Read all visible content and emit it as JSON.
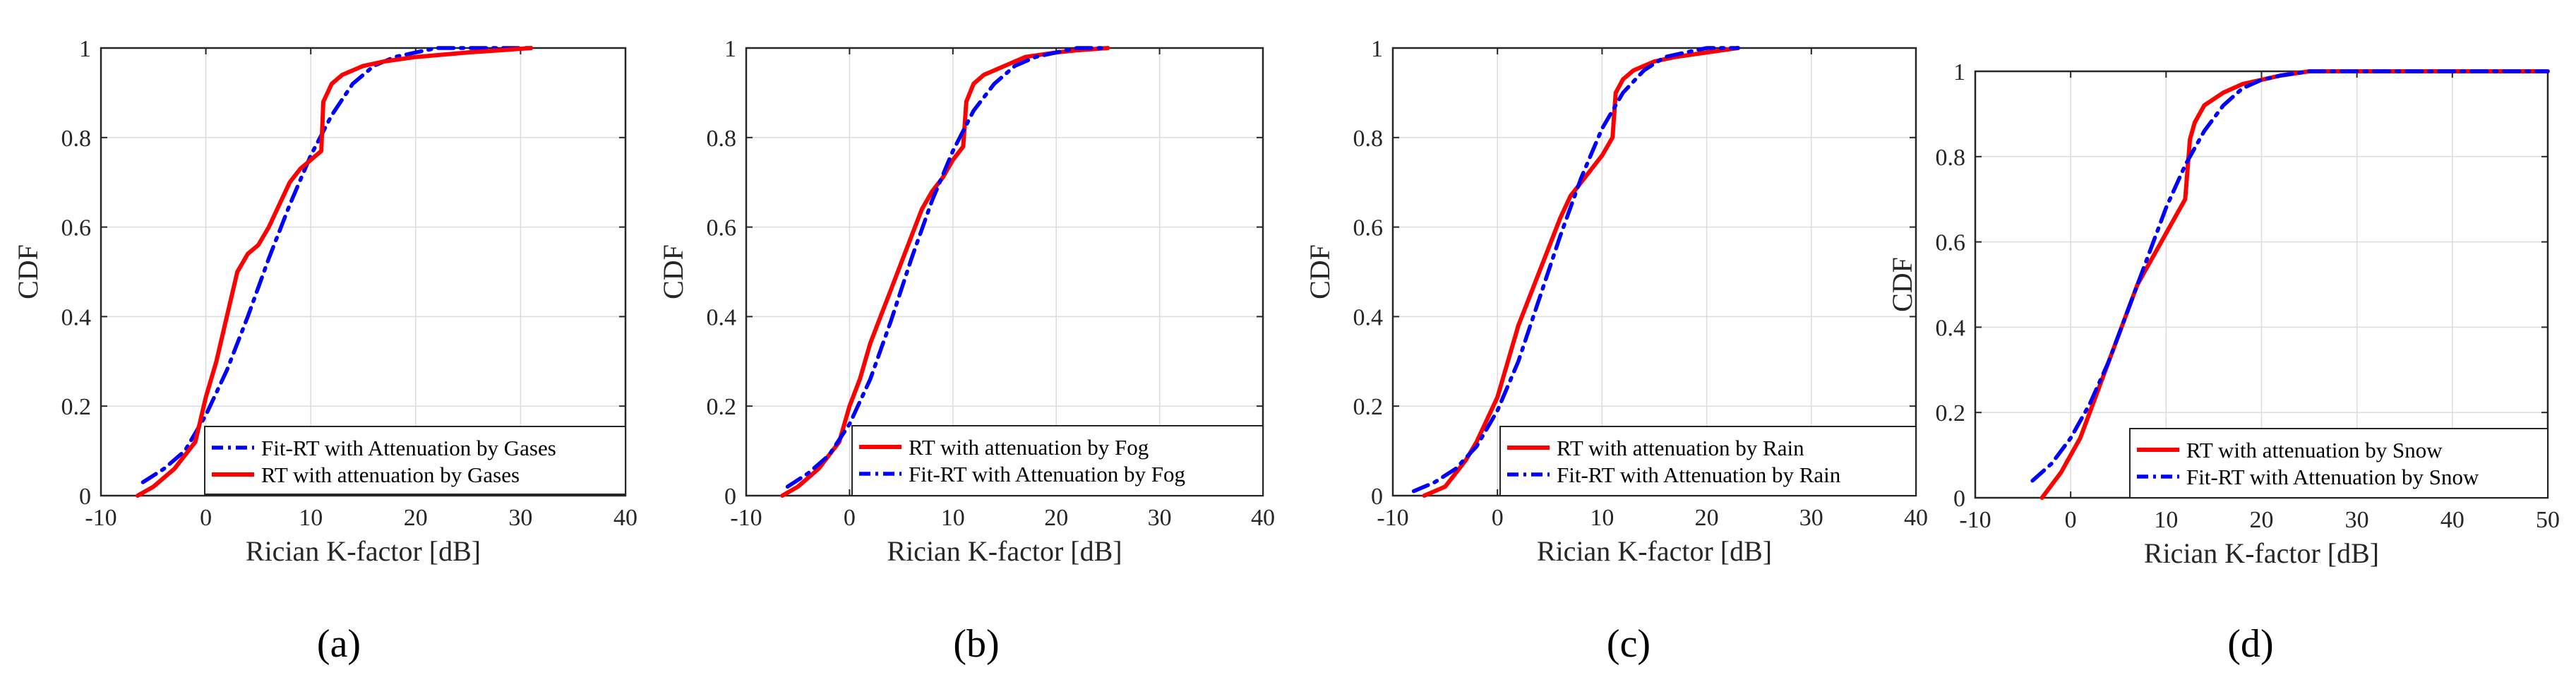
{
  "chart_data": [
    {
      "type": "line",
      "panel_label": "(a)",
      "xlabel": "Rician K-factor [dB]",
      "ylabel": "CDF",
      "xlim": [
        -10,
        40
      ],
      "ylim": [
        0,
        1
      ],
      "xticks": [
        "-10",
        "0",
        "10",
        "20",
        "30",
        "40"
      ],
      "yticks": [
        "0",
        "0.2",
        "0.4",
        "0.6",
        "0.8",
        "1"
      ],
      "grid": true,
      "legend_position": "bottom-right",
      "series": [
        {
          "name": "Fit-RT with Attenuation by Gases",
          "color": "#0000ff",
          "style": "dashdot",
          "x": [
            -6,
            -4,
            -2,
            0,
            2,
            4,
            6,
            8,
            10,
            12,
            14,
            16,
            18,
            20,
            22,
            25,
            28,
            31
          ],
          "y": [
            0.03,
            0.06,
            0.1,
            0.18,
            0.28,
            0.4,
            0.53,
            0.65,
            0.76,
            0.85,
            0.92,
            0.96,
            0.98,
            0.99,
            1.0,
            1.0,
            1.0,
            1.0
          ]
        },
        {
          "name": "RT with attenuation by Gases",
          "color": "#ff0000",
          "style": "solid",
          "x": [
            -6.5,
            -5,
            -3,
            -1,
            0,
            1,
            2,
            3,
            4,
            5,
            6,
            7,
            8,
            9,
            10,
            11,
            11.2,
            12,
            13,
            15,
            17,
            20,
            25,
            28,
            31
          ],
          "y": [
            0.0,
            0.02,
            0.06,
            0.12,
            0.22,
            0.3,
            0.4,
            0.5,
            0.54,
            0.56,
            0.6,
            0.65,
            0.7,
            0.73,
            0.75,
            0.77,
            0.88,
            0.92,
            0.94,
            0.96,
            0.97,
            0.98,
            0.99,
            0.995,
            1.0
          ]
        }
      ]
    },
    {
      "type": "line",
      "panel_label": "(b)",
      "xlabel": "Rician K-factor [dB]",
      "ylabel": "CDF",
      "xlim": [
        -10,
        40
      ],
      "ylim": [
        0,
        1
      ],
      "xticks": [
        "-10",
        "0",
        "10",
        "20",
        "30",
        "40"
      ],
      "yticks": [
        "0",
        "0.2",
        "0.4",
        "0.6",
        "0.8",
        "1"
      ],
      "grid": true,
      "legend_position": "bottom-right",
      "series": [
        {
          "name": "RT with attenuation by Fog",
          "color": "#ff0000",
          "style": "solid",
          "x": [
            -6.5,
            -5,
            -3,
            -1,
            0,
            1,
            2,
            3,
            4,
            5,
            6,
            7,
            8,
            9,
            10,
            11,
            11.3,
            12,
            13,
            15,
            17,
            20,
            22,
            25
          ],
          "y": [
            0.0,
            0.02,
            0.06,
            0.12,
            0.2,
            0.26,
            0.34,
            0.4,
            0.46,
            0.52,
            0.58,
            0.64,
            0.68,
            0.71,
            0.75,
            0.78,
            0.88,
            0.92,
            0.94,
            0.96,
            0.98,
            0.99,
            0.995,
            1.0
          ]
        },
        {
          "name": "Fit-RT with Attenuation by Fog",
          "color": "#0000ff",
          "style": "dashdot",
          "x": [
            -6,
            -4,
            -2,
            0,
            2,
            4,
            6,
            8,
            10,
            12,
            14,
            16,
            18,
            20,
            22,
            25
          ],
          "y": [
            0.02,
            0.05,
            0.09,
            0.16,
            0.26,
            0.39,
            0.53,
            0.66,
            0.77,
            0.86,
            0.92,
            0.96,
            0.98,
            0.99,
            1.0,
            1.0
          ]
        }
      ]
    },
    {
      "type": "line",
      "panel_label": "(c)",
      "xlabel": "Rician K-factor [dB]",
      "ylabel": "CDF",
      "xlim": [
        -10,
        40
      ],
      "ylim": [
        0,
        1
      ],
      "xticks": [
        "-10",
        "0",
        "10",
        "20",
        "30",
        "40"
      ],
      "yticks": [
        "0",
        "0.2",
        "0.4",
        "0.6",
        "0.8",
        "1"
      ],
      "grid": true,
      "legend_position": "bottom-right",
      "series": [
        {
          "name": "RT with attenuation by Rain",
          "color": "#ff0000",
          "style": "solid",
          "x": [
            -7,
            -5,
            -4,
            -3,
            -2,
            0,
            1,
            2,
            3,
            4,
            5,
            6,
            7,
            8,
            9,
            10,
            11,
            11.3,
            12,
            13,
            15,
            17,
            20,
            23
          ],
          "y": [
            0.0,
            0.02,
            0.05,
            0.08,
            0.12,
            0.22,
            0.3,
            0.38,
            0.44,
            0.5,
            0.56,
            0.62,
            0.67,
            0.7,
            0.73,
            0.76,
            0.8,
            0.9,
            0.93,
            0.95,
            0.97,
            0.98,
            0.99,
            1.0
          ]
        },
        {
          "name": "Fit-RT with Attenuation by Rain",
          "color": "#0000ff",
          "style": "dashdot",
          "x": [
            -8,
            -6,
            -4,
            -2,
            0,
            2,
            4,
            6,
            8,
            10,
            12,
            14,
            16,
            18,
            20,
            23
          ],
          "y": [
            0.01,
            0.03,
            0.06,
            0.11,
            0.19,
            0.3,
            0.44,
            0.58,
            0.71,
            0.82,
            0.9,
            0.95,
            0.98,
            0.99,
            1.0,
            1.0
          ]
        }
      ]
    },
    {
      "type": "line",
      "panel_label": "(d)",
      "xlabel": "Rician K-factor [dB]",
      "ylabel": "CDF",
      "xlim": [
        -10,
        50
      ],
      "ylim": [
        0,
        1
      ],
      "xticks": [
        "-10",
        "0",
        "10",
        "20",
        "30",
        "40",
        "50"
      ],
      "yticks": [
        "0",
        "0.2",
        "0.4",
        "0.6",
        "0.8",
        "1"
      ],
      "grid": true,
      "legend_position": "bottom-right",
      "series": [
        {
          "name": "RT with attenuation by Snow",
          "color": "#ff0000",
          "style": "solid",
          "x": [
            -3,
            -2,
            -1,
            0,
            1,
            2,
            3,
            4,
            5,
            6,
            7,
            8,
            9,
            10,
            11,
            12,
            12.5,
            13,
            14,
            16,
            18,
            20,
            22,
            25,
            28,
            50
          ],
          "y": [
            0.0,
            0.03,
            0.06,
            0.1,
            0.14,
            0.2,
            0.26,
            0.32,
            0.38,
            0.44,
            0.5,
            0.54,
            0.58,
            0.62,
            0.66,
            0.7,
            0.84,
            0.88,
            0.92,
            0.95,
            0.97,
            0.98,
            0.99,
            1.0,
            1.0,
            1.0
          ]
        },
        {
          "name": "Fit-RT with Attenuation by Snow",
          "color": "#0000ff",
          "style": "dashdot",
          "x": [
            -4,
            -2,
            0,
            2,
            4,
            6,
            8,
            10,
            12,
            14,
            16,
            18,
            20,
            22,
            25,
            30,
            40,
            50
          ],
          "y": [
            0.04,
            0.08,
            0.14,
            0.22,
            0.32,
            0.44,
            0.56,
            0.68,
            0.78,
            0.86,
            0.92,
            0.96,
            0.98,
            0.99,
            1.0,
            1.0,
            1.0,
            1.0
          ]
        }
      ]
    }
  ]
}
